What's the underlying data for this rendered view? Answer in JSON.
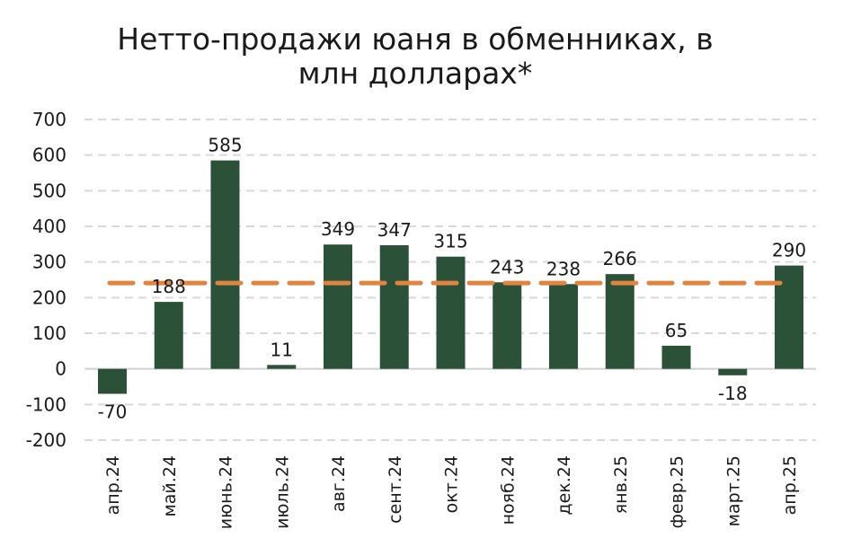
{
  "chart_data": {
    "type": "bar",
    "title_lines": [
      "Нетто-продажи юаня в обменниках, в",
      "млн долларах*"
    ],
    "categories": [
      "апр.24",
      "май.24",
      "июнь.24",
      "июль.24",
      "авг.24",
      "сент.24",
      "окт.24",
      "нояб.24",
      "дек.24",
      "янв.25",
      "февр.25",
      "март.25",
      "апр.25"
    ],
    "values": [
      -70,
      188,
      585,
      11,
      349,
      347,
      315,
      243,
      238,
      266,
      65,
      -18,
      290
    ],
    "value_labels": [
      "-70",
      "188",
      "585",
      "11",
      "349",
      "347",
      "315",
      "243",
      "238",
      "266",
      "65",
      "-18",
      "290"
    ],
    "average_line": 241,
    "ylim": [
      -200,
      700
    ],
    "yticks": [
      -200,
      -100,
      0,
      100,
      200,
      300,
      400,
      500,
      600,
      700
    ],
    "ytick_labels": [
      "-200",
      "-100",
      "0",
      "100",
      "200",
      "300",
      "400",
      "500",
      "600",
      "700"
    ],
    "grid": true,
    "legend": "none",
    "colors": {
      "bar": "#2b5239",
      "average_line": "#e0843f",
      "grid": "#d9d9d9",
      "zero_line": "#d0d0d0"
    }
  }
}
